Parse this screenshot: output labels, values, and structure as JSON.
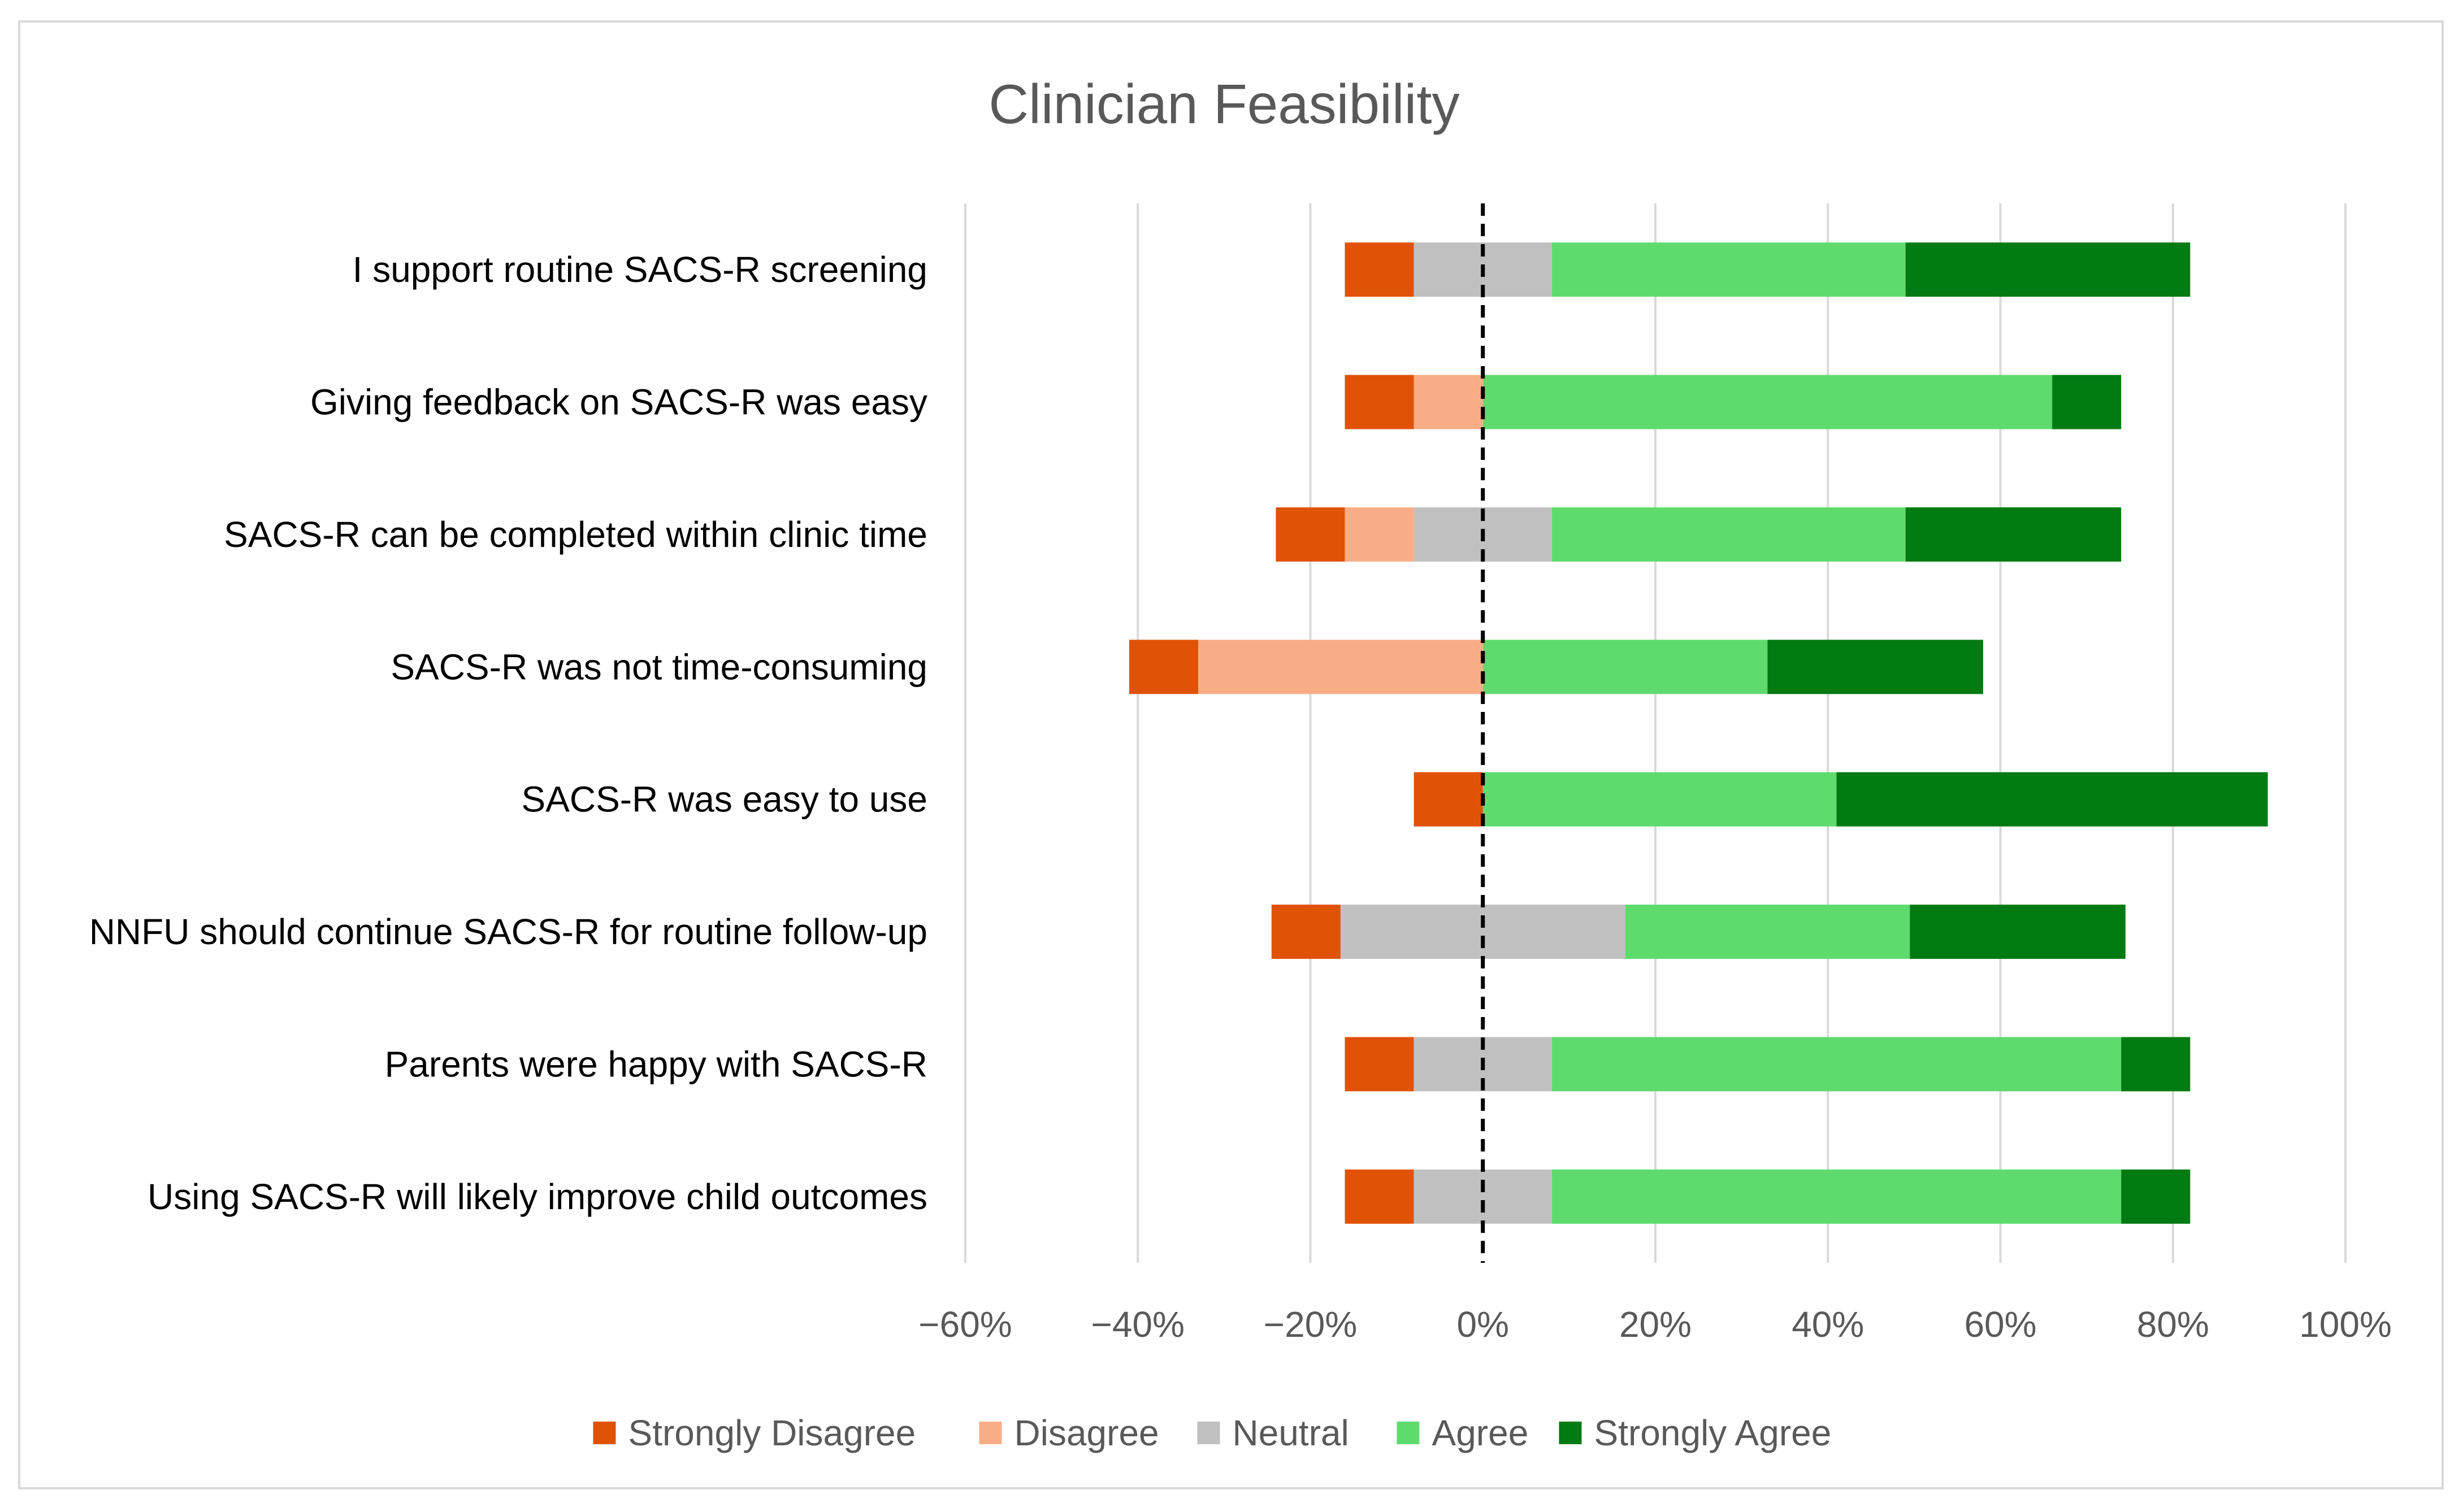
{
  "chart_data": {
    "type": "bar",
    "orientation": "horizontal",
    "stacked": "diverging",
    "title": "Clinician Feasibility",
    "xlabel": "",
    "ylabel": "",
    "xlim": [
      -60,
      100
    ],
    "xticks": [
      -60,
      -40,
      -20,
      0,
      20,
      40,
      60,
      80,
      100
    ],
    "xtick_labels": [
      "−60%",
      "−40%",
      "−20%",
      "0%",
      "20%",
      "40%",
      "60%",
      "80%",
      "100%"
    ],
    "grid": "vertical",
    "reference_line": {
      "x": 0,
      "style": "dashed"
    },
    "legend_position": "bottom",
    "categories": [
      "I support routine SACS-R screening",
      "Giving feedback on SACS-R was easy",
      "SACS-R can be completed within clinic time",
      "SACS-R was not time-consuming",
      "SACS-R was easy to use",
      "NNFU should continue SACS-R for routine follow-up",
      "Parents were happy with SACS-R",
      "Using SACS-R will likely improve child outcomes"
    ],
    "series": [
      {
        "name": "Strongly Disagree",
        "color": "#e05206",
        "values": [
          8,
          8,
          8,
          8,
          8,
          8,
          8,
          8
        ]
      },
      {
        "name": "Disagree",
        "color": "#f9ad86",
        "values": [
          0,
          8,
          8,
          33,
          0,
          0,
          0,
          0
        ]
      },
      {
        "name": "Neutral",
        "color": "#c0c0c0",
        "values": [
          16,
          0,
          16,
          0,
          0,
          33,
          16,
          16
        ]
      },
      {
        "name": "Agree",
        "color": "#5fdb6e",
        "values": [
          41,
          66,
          41,
          33,
          41,
          33,
          66,
          66
        ]
      },
      {
        "name": "Strongly Agree",
        "color": "#007a12",
        "values": [
          33,
          8,
          25,
          25,
          50,
          25,
          8,
          8
        ]
      }
    ]
  }
}
